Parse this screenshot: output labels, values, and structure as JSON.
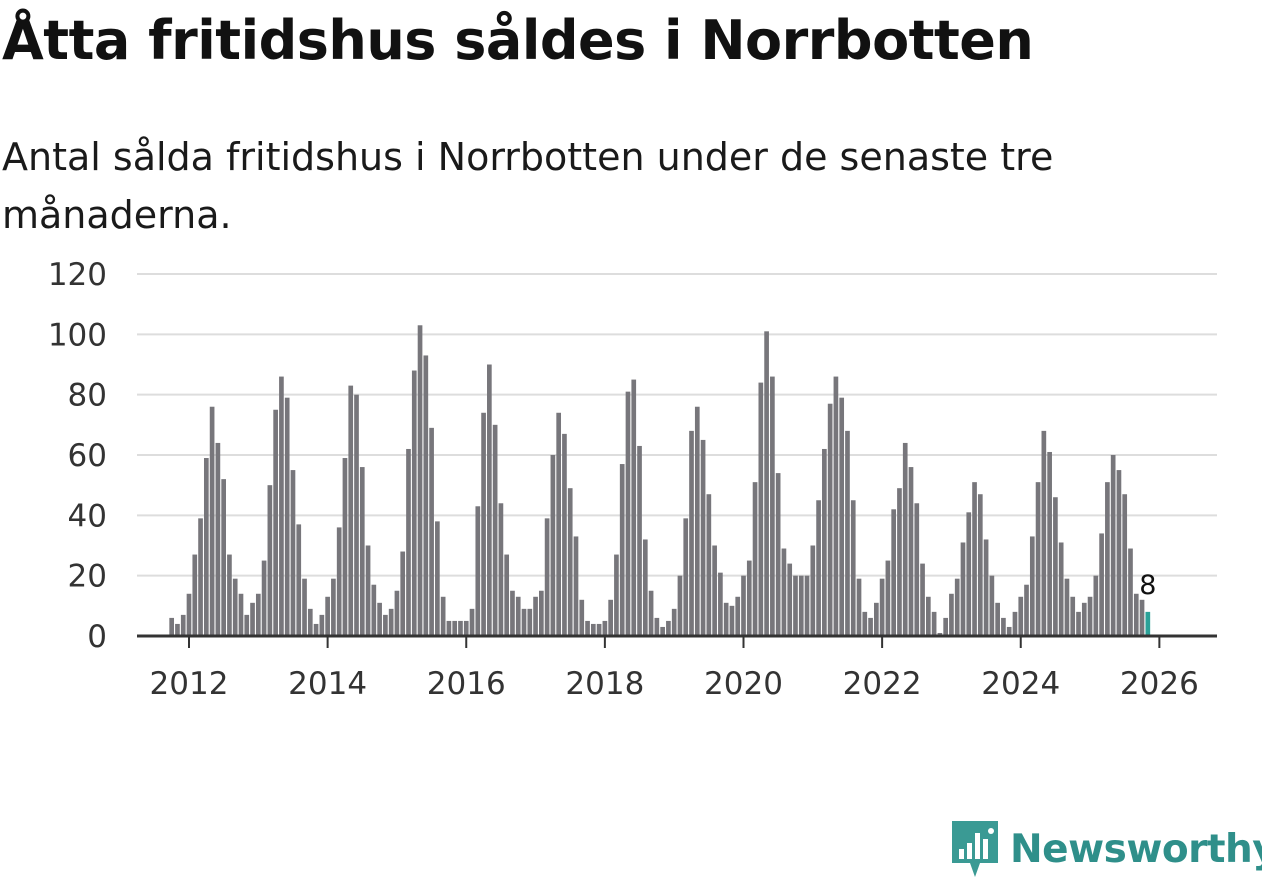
{
  "title": "Åtta fritidshus såldes i Norrbotten",
  "subtitle": "Antal sålda fritidshus i Norrbotten under de senaste tre månaderna.",
  "brand": "Newsworthy",
  "colors": {
    "bar": "#77767b",
    "highlight": "#2aa198",
    "grid": "#dddddd",
    "axis": "#333333",
    "brand": "#2f8f8a"
  },
  "chart_data": {
    "type": "bar",
    "x_start": "2011-01",
    "x_step": "month",
    "ylim": [
      0,
      120
    ],
    "y_ticks": [
      0,
      20,
      40,
      60,
      80,
      100,
      120
    ],
    "x_ticks": [
      "2012",
      "2014",
      "2016",
      "2018",
      "2020",
      "2022",
      "2024",
      "2026"
    ],
    "grid": true,
    "values": [
      0,
      0,
      0,
      0,
      0,
      0,
      0,
      0,
      0,
      6,
      4,
      7,
      14,
      27,
      39,
      59,
      76,
      64,
      52,
      27,
      19,
      14,
      7,
      11,
      14,
      25,
      50,
      75,
      86,
      79,
      55,
      37,
      19,
      9,
      4,
      7,
      13,
      19,
      36,
      59,
      83,
      80,
      56,
      30,
      17,
      11,
      7,
      9,
      15,
      28,
      62,
      88,
      103,
      93,
      69,
      38,
      13,
      5,
      5,
      5,
      5,
      9,
      43,
      74,
      90,
      70,
      44,
      27,
      15,
      13,
      9,
      9,
      13,
      15,
      39,
      60,
      74,
      67,
      49,
      33,
      12,
      5,
      4,
      4,
      5,
      12,
      27,
      57,
      81,
      85,
      63,
      32,
      15,
      6,
      3,
      5,
      9,
      20,
      39,
      68,
      76,
      65,
      47,
      30,
      21,
      11,
      10,
      13,
      20,
      25,
      51,
      84,
      101,
      86,
      54,
      29,
      24,
      20,
      20,
      20,
      30,
      45,
      62,
      77,
      86,
      79,
      68,
      45,
      19,
      8,
      6,
      11,
      19,
      25,
      42,
      49,
      64,
      56,
      44,
      24,
      13,
      8,
      1,
      6,
      14,
      19,
      31,
      41,
      51,
      47,
      32,
      20,
      11,
      6,
      3,
      8,
      13,
      17,
      33,
      51,
      68,
      61,
      46,
      31,
      19,
      13,
      8,
      11,
      13,
      20,
      34,
      51,
      60,
      55,
      47,
      29,
      14,
      12,
      8
    ],
    "highlight_last": true,
    "annotation": "8"
  }
}
